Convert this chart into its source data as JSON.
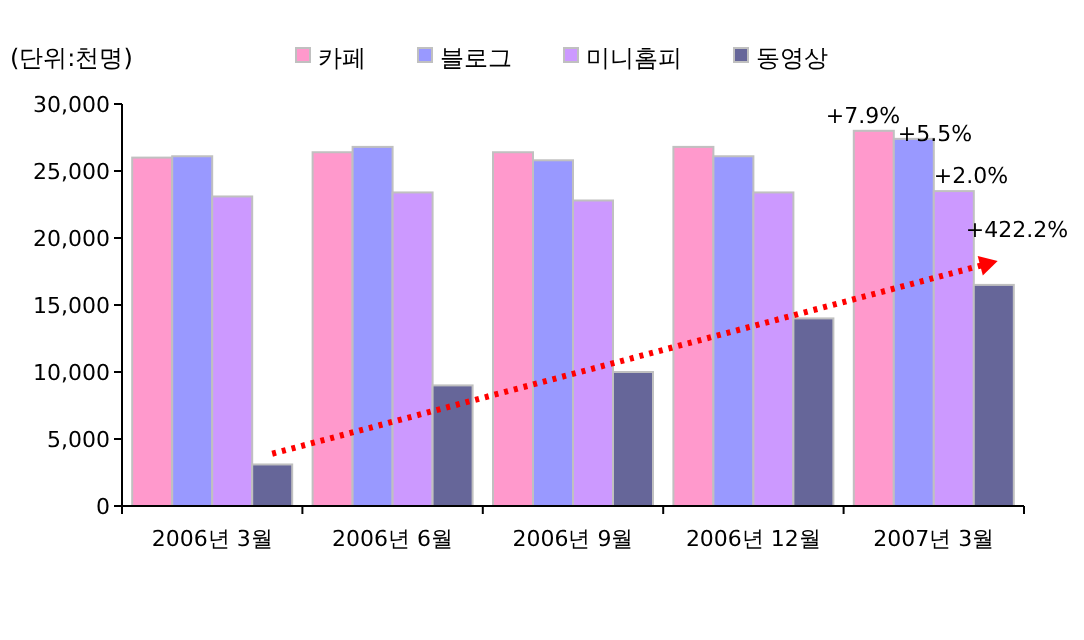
{
  "chart_data": {
    "type": "bar",
    "ylabel": "(단위:천명)",
    "categories": [
      "2006년 3월",
      "2006년 6월",
      "2006년 9월",
      "2006년 12월",
      "2007년 3월"
    ],
    "series": [
      {
        "name": "카페",
        "color": "#ff99cc",
        "values": [
          26000,
          26400,
          26400,
          26800,
          28000
        ]
      },
      {
        "name": "블로그",
        "color": "#9999ff",
        "values": [
          26100,
          26800,
          25800,
          26100,
          27400
        ]
      },
      {
        "name": "미니홈피",
        "color": "#cc99ff",
        "values": [
          23100,
          23400,
          22800,
          23400,
          23500
        ]
      },
      {
        "name": "동영상",
        "color": "#666699",
        "values": [
          3100,
          9000,
          10000,
          14000,
          16500
        ]
      },
      {
        "type": "line",
        "color": "#ff0000",
        "line_style": "dotted",
        "x": [
          "2006년 3월",
          "2007년 3월"
        ],
        "values": [
          3900,
          18200
        ]
      }
    ],
    "ylim": [
      0,
      30000
    ],
    "yticks": [
      {
        "value": 0,
        "label": "0"
      },
      {
        "value": 5000,
        "label": "5,000"
      },
      {
        "value": 10000,
        "label": "10,000"
      },
      {
        "value": 15000,
        "label": "15,000"
      },
      {
        "value": 20000,
        "label": "20,000"
      },
      {
        "value": 25000,
        "label": "25,000"
      },
      {
        "value": 30000,
        "label": "30,000"
      }
    ],
    "grid": false,
    "legend": "top",
    "annotations": [
      {
        "text": "+7.9%",
        "x": "2007년 3월",
        "y": 28000
      },
      {
        "text": "+5.5%",
        "x": "2007년 3월",
        "y": 27400
      },
      {
        "text": "+2.0%",
        "x": "2007년 3월",
        "y": 23500
      },
      {
        "text": "+422.2%",
        "x": "2007년 3월",
        "y": 16500
      }
    ]
  }
}
